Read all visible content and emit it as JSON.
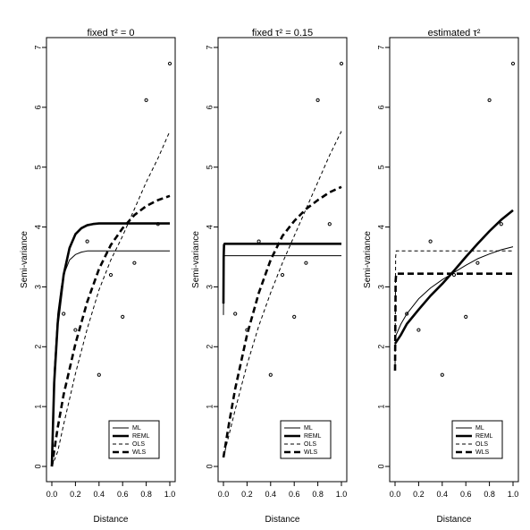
{
  "figure": {
    "background": "#ffffff",
    "ink": "#000000"
  },
  "chart_data": [
    {
      "type": "line",
      "title": "fixed τ² = 0",
      "xlabel": "Distance",
      "ylabel": "Semi-variance",
      "xlim": [
        0,
        1
      ],
      "ylim": [
        0,
        7
      ],
      "xticks": [
        "0.0",
        "0.2",
        "0.4",
        "0.6",
        "0.8",
        "1.0"
      ],
      "yticks": [
        "0",
        "1",
        "2",
        "3",
        "4",
        "5",
        "6",
        "7"
      ],
      "legend_position": "bottom-right",
      "empirical_points": [
        {
          "x": 0.1,
          "y": 2.55
        },
        {
          "x": 0.2,
          "y": 2.28
        },
        {
          "x": 0.3,
          "y": 3.76
        },
        {
          "x": 0.4,
          "y": 1.53
        },
        {
          "x": 0.5,
          "y": 3.2
        },
        {
          "x": 0.6,
          "y": 2.5
        },
        {
          "x": 0.7,
          "y": 3.4
        },
        {
          "x": 0.8,
          "y": 6.12
        },
        {
          "x": 0.9,
          "y": 4.05
        },
        {
          "x": 1.0,
          "y": 6.73
        }
      ],
      "series": [
        {
          "name": "ML",
          "style": "thin-solid",
          "x": [
            0,
            0.02,
            0.05,
            0.08,
            0.1,
            0.15,
            0.2,
            0.25,
            0.3,
            0.4,
            0.5,
            0.7,
            1.0
          ],
          "y": [
            0,
            1.6,
            2.55,
            3.0,
            3.2,
            3.45,
            3.54,
            3.58,
            3.6,
            3.6,
            3.6,
            3.6,
            3.6
          ]
        },
        {
          "name": "REML",
          "style": "thick-solid",
          "x": [
            0,
            0.02,
            0.05,
            0.1,
            0.15,
            0.2,
            0.25,
            0.3,
            0.35,
            0.4,
            0.5,
            0.7,
            1.0
          ],
          "y": [
            0,
            1.4,
            2.4,
            3.2,
            3.65,
            3.88,
            3.98,
            4.03,
            4.05,
            4.06,
            4.06,
            4.06,
            4.06
          ]
        },
        {
          "name": "OLS",
          "style": "thin-dashed",
          "x": [
            0,
            0.05,
            0.1,
            0.2,
            0.3,
            0.4,
            0.5,
            0.6,
            0.7,
            0.8,
            0.9,
            1.0
          ],
          "y": [
            0,
            0.25,
            0.7,
            1.55,
            2.3,
            2.95,
            3.45,
            3.85,
            4.3,
            4.75,
            5.15,
            5.6
          ]
        },
        {
          "name": "WLS",
          "style": "thick-dashed",
          "x": [
            0,
            0.05,
            0.1,
            0.2,
            0.3,
            0.4,
            0.5,
            0.6,
            0.7,
            0.8,
            0.9,
            1.0
          ],
          "y": [
            0,
            0.65,
            1.2,
            2.05,
            2.75,
            3.3,
            3.7,
            3.98,
            4.2,
            4.35,
            4.45,
            4.52
          ]
        }
      ]
    },
    {
      "type": "line",
      "title": "fixed τ² = 0.15",
      "xlabel": "Distance",
      "ylabel": "Semi-variance",
      "xlim": [
        0,
        1
      ],
      "ylim": [
        0,
        7
      ],
      "xticks": [
        "0.0",
        "0.2",
        "0.4",
        "0.6",
        "0.8",
        "1.0"
      ],
      "yticks": [
        "0",
        "1",
        "2",
        "3",
        "4",
        "5",
        "6",
        "7"
      ],
      "legend_position": "bottom-right",
      "empirical_points": [
        {
          "x": 0.1,
          "y": 2.55
        },
        {
          "x": 0.2,
          "y": 2.28
        },
        {
          "x": 0.3,
          "y": 3.76
        },
        {
          "x": 0.4,
          "y": 1.53
        },
        {
          "x": 0.5,
          "y": 3.2
        },
        {
          "x": 0.6,
          "y": 2.5
        },
        {
          "x": 0.7,
          "y": 3.4
        },
        {
          "x": 0.8,
          "y": 6.12
        },
        {
          "x": 0.9,
          "y": 4.05
        },
        {
          "x": 1.0,
          "y": 6.73
        }
      ],
      "series": [
        {
          "name": "ML",
          "style": "thin-solid",
          "x": [
            0,
            0.002,
            0.005,
            0.01,
            0.3,
            0.6,
            1.0
          ],
          "y": [
            2.53,
            3.3,
            3.5,
            3.52,
            3.52,
            3.52,
            3.52
          ]
        },
        {
          "name": "REML",
          "style": "thick-solid",
          "x": [
            0,
            0.002,
            0.005,
            0.01,
            0.3,
            0.6,
            1.0
          ],
          "y": [
            2.72,
            3.5,
            3.7,
            3.72,
            3.72,
            3.72,
            3.72
          ]
        },
        {
          "name": "OLS",
          "style": "thin-dashed",
          "x": [
            0,
            0.05,
            0.1,
            0.2,
            0.3,
            0.4,
            0.5,
            0.6,
            0.7,
            0.8,
            0.9,
            1.0
          ],
          "y": [
            0.15,
            0.55,
            0.95,
            1.7,
            2.35,
            2.9,
            3.4,
            3.85,
            4.3,
            4.75,
            5.2,
            5.6
          ]
        },
        {
          "name": "WLS",
          "style": "thick-dashed",
          "x": [
            0,
            0.05,
            0.1,
            0.2,
            0.3,
            0.4,
            0.5,
            0.6,
            0.7,
            0.8,
            0.9,
            1.0
          ],
          "y": [
            0.15,
            0.75,
            1.3,
            2.2,
            2.9,
            3.45,
            3.85,
            4.1,
            4.3,
            4.45,
            4.58,
            4.67
          ]
        }
      ]
    },
    {
      "type": "line",
      "title": "estimated τ²",
      "xlabel": "Distance",
      "ylabel": "Semi-variance",
      "xlim": [
        0,
        1
      ],
      "ylim": [
        0,
        7
      ],
      "xticks": [
        "0.0",
        "0.2",
        "0.4",
        "0.6",
        "0.8",
        "1.0"
      ],
      "yticks": [
        "0",
        "1",
        "2",
        "3",
        "4",
        "5",
        "6",
        "7"
      ],
      "legend_position": "bottom-right",
      "empirical_points": [
        {
          "x": 0.1,
          "y": 2.55
        },
        {
          "x": 0.2,
          "y": 2.28
        },
        {
          "x": 0.3,
          "y": 3.76
        },
        {
          "x": 0.4,
          "y": 1.53
        },
        {
          "x": 0.5,
          "y": 3.2
        },
        {
          "x": 0.6,
          "y": 2.5
        },
        {
          "x": 0.7,
          "y": 3.4
        },
        {
          "x": 0.8,
          "y": 6.12
        },
        {
          "x": 0.9,
          "y": 4.05
        },
        {
          "x": 1.0,
          "y": 6.73
        }
      ],
      "series": [
        {
          "name": "ML",
          "style": "thin-solid",
          "x": [
            0,
            0.01,
            0.05,
            0.1,
            0.2,
            0.3,
            0.4,
            0.5,
            0.6,
            0.7,
            0.8,
            0.9,
            1.0
          ],
          "y": [
            2.15,
            2.2,
            2.38,
            2.55,
            2.8,
            2.98,
            3.12,
            3.24,
            3.36,
            3.47,
            3.55,
            3.62,
            3.67
          ]
        },
        {
          "name": "REML",
          "style": "thick-solid",
          "x": [
            0,
            0.01,
            0.05,
            0.1,
            0.2,
            0.3,
            0.4,
            0.5,
            0.6,
            0.7,
            0.8,
            0.9,
            1.0
          ],
          "y": [
            2.05,
            2.08,
            2.2,
            2.38,
            2.62,
            2.85,
            3.05,
            3.27,
            3.5,
            3.72,
            3.93,
            4.12,
            4.28
          ]
        },
        {
          "name": "OLS",
          "style": "thin-dashed",
          "x": [
            0,
            0.005,
            0.01,
            0.3,
            0.6,
            1.0
          ],
          "y": [
            1.6,
            3.5,
            3.6,
            3.6,
            3.6,
            3.6
          ]
        },
        {
          "name": "WLS",
          "style": "thick-dashed",
          "x": [
            0,
            0.005,
            0.01,
            0.3,
            0.6,
            1.0
          ],
          "y": [
            1.6,
            3.1,
            3.22,
            3.22,
            3.22,
            3.22
          ]
        }
      ]
    }
  ]
}
